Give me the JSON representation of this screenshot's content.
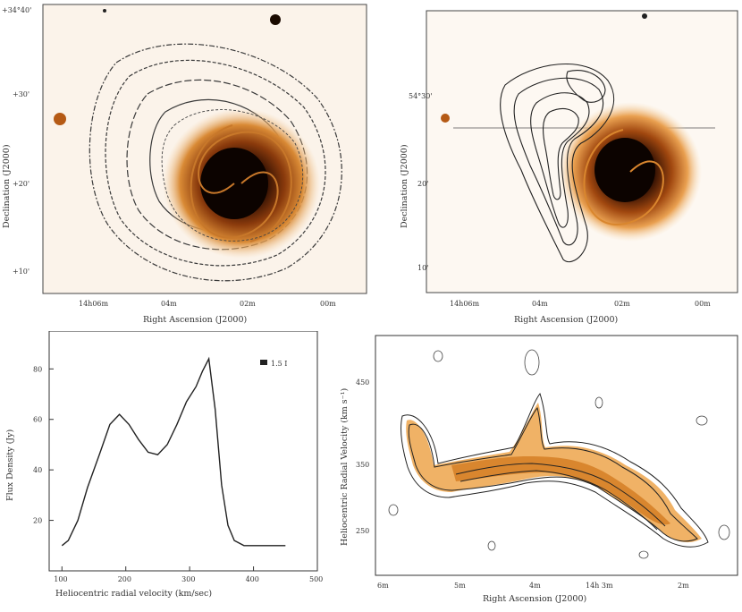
{
  "panels": {
    "top_left": {
      "xlabel": "Right Ascension (J2000)",
      "ylabel": "Declination (J2000)",
      "xticks": [
        "14h06m",
        "04m",
        "02m",
        "00m"
      ],
      "yticks": [
        "+34°40'",
        "+30'",
        "+20'",
        "+10'"
      ],
      "colors": {
        "map": "#c8782a",
        "contour": "#333333"
      }
    },
    "top_right": {
      "xlabel": "Right Ascension (J2000)",
      "ylabel": "Declination (J2000)",
      "xticks": [
        "14h06m",
        "04m",
        "02m",
        "00m"
      ],
      "yticks": [
        "54°30'",
        "20'",
        "10'"
      ],
      "colors": {
        "map": "#d9862e",
        "contour": "#222222"
      }
    },
    "bottom_left": {
      "xlabel": "Heliocentric radial velocity (km/sec)",
      "ylabel": "Flux Density (Jy)",
      "legend": "1.5 I",
      "xticks": [
        "100",
        "200",
        "300",
        "400",
        "500"
      ],
      "yticks": [
        "20",
        "40",
        "60",
        "80"
      ]
    },
    "bottom_right": {
      "xlabel": "Right Ascension (J2000)",
      "ylabel": "Heliocentric Radial Velocity (km s⁻¹)",
      "xticks": [
        "6m",
        "5m",
        "4m",
        "14h 3m",
        "2m"
      ],
      "yticks": [
        "450",
        "350",
        "250"
      ],
      "colors": {
        "map": "#e09a3a",
        "contour": "#222222"
      }
    }
  },
  "chart_data": {
    "type": "line",
    "x": [
      100,
      110,
      125,
      140,
      160,
      175,
      190,
      205,
      220,
      235,
      250,
      265,
      280,
      295,
      310,
      320,
      330,
      340,
      350,
      360,
      370,
      385,
      400,
      430,
      450
    ],
    "series": [
      {
        "values": [
          10,
          12,
          20,
          33,
          47,
          58,
          62,
          58,
          52,
          47,
          46,
          50,
          58,
          67,
          73,
          79,
          84,
          64,
          34,
          18,
          12,
          10,
          10,
          10,
          10
        ]
      }
    ],
    "xlabel": "Heliocentric radial velocity (km/sec)",
    "ylabel": "Flux Density (Jy)",
    "xlim": [
      80,
      500
    ],
    "ylim": [
      0,
      95
    ],
    "legend": "top-right"
  }
}
